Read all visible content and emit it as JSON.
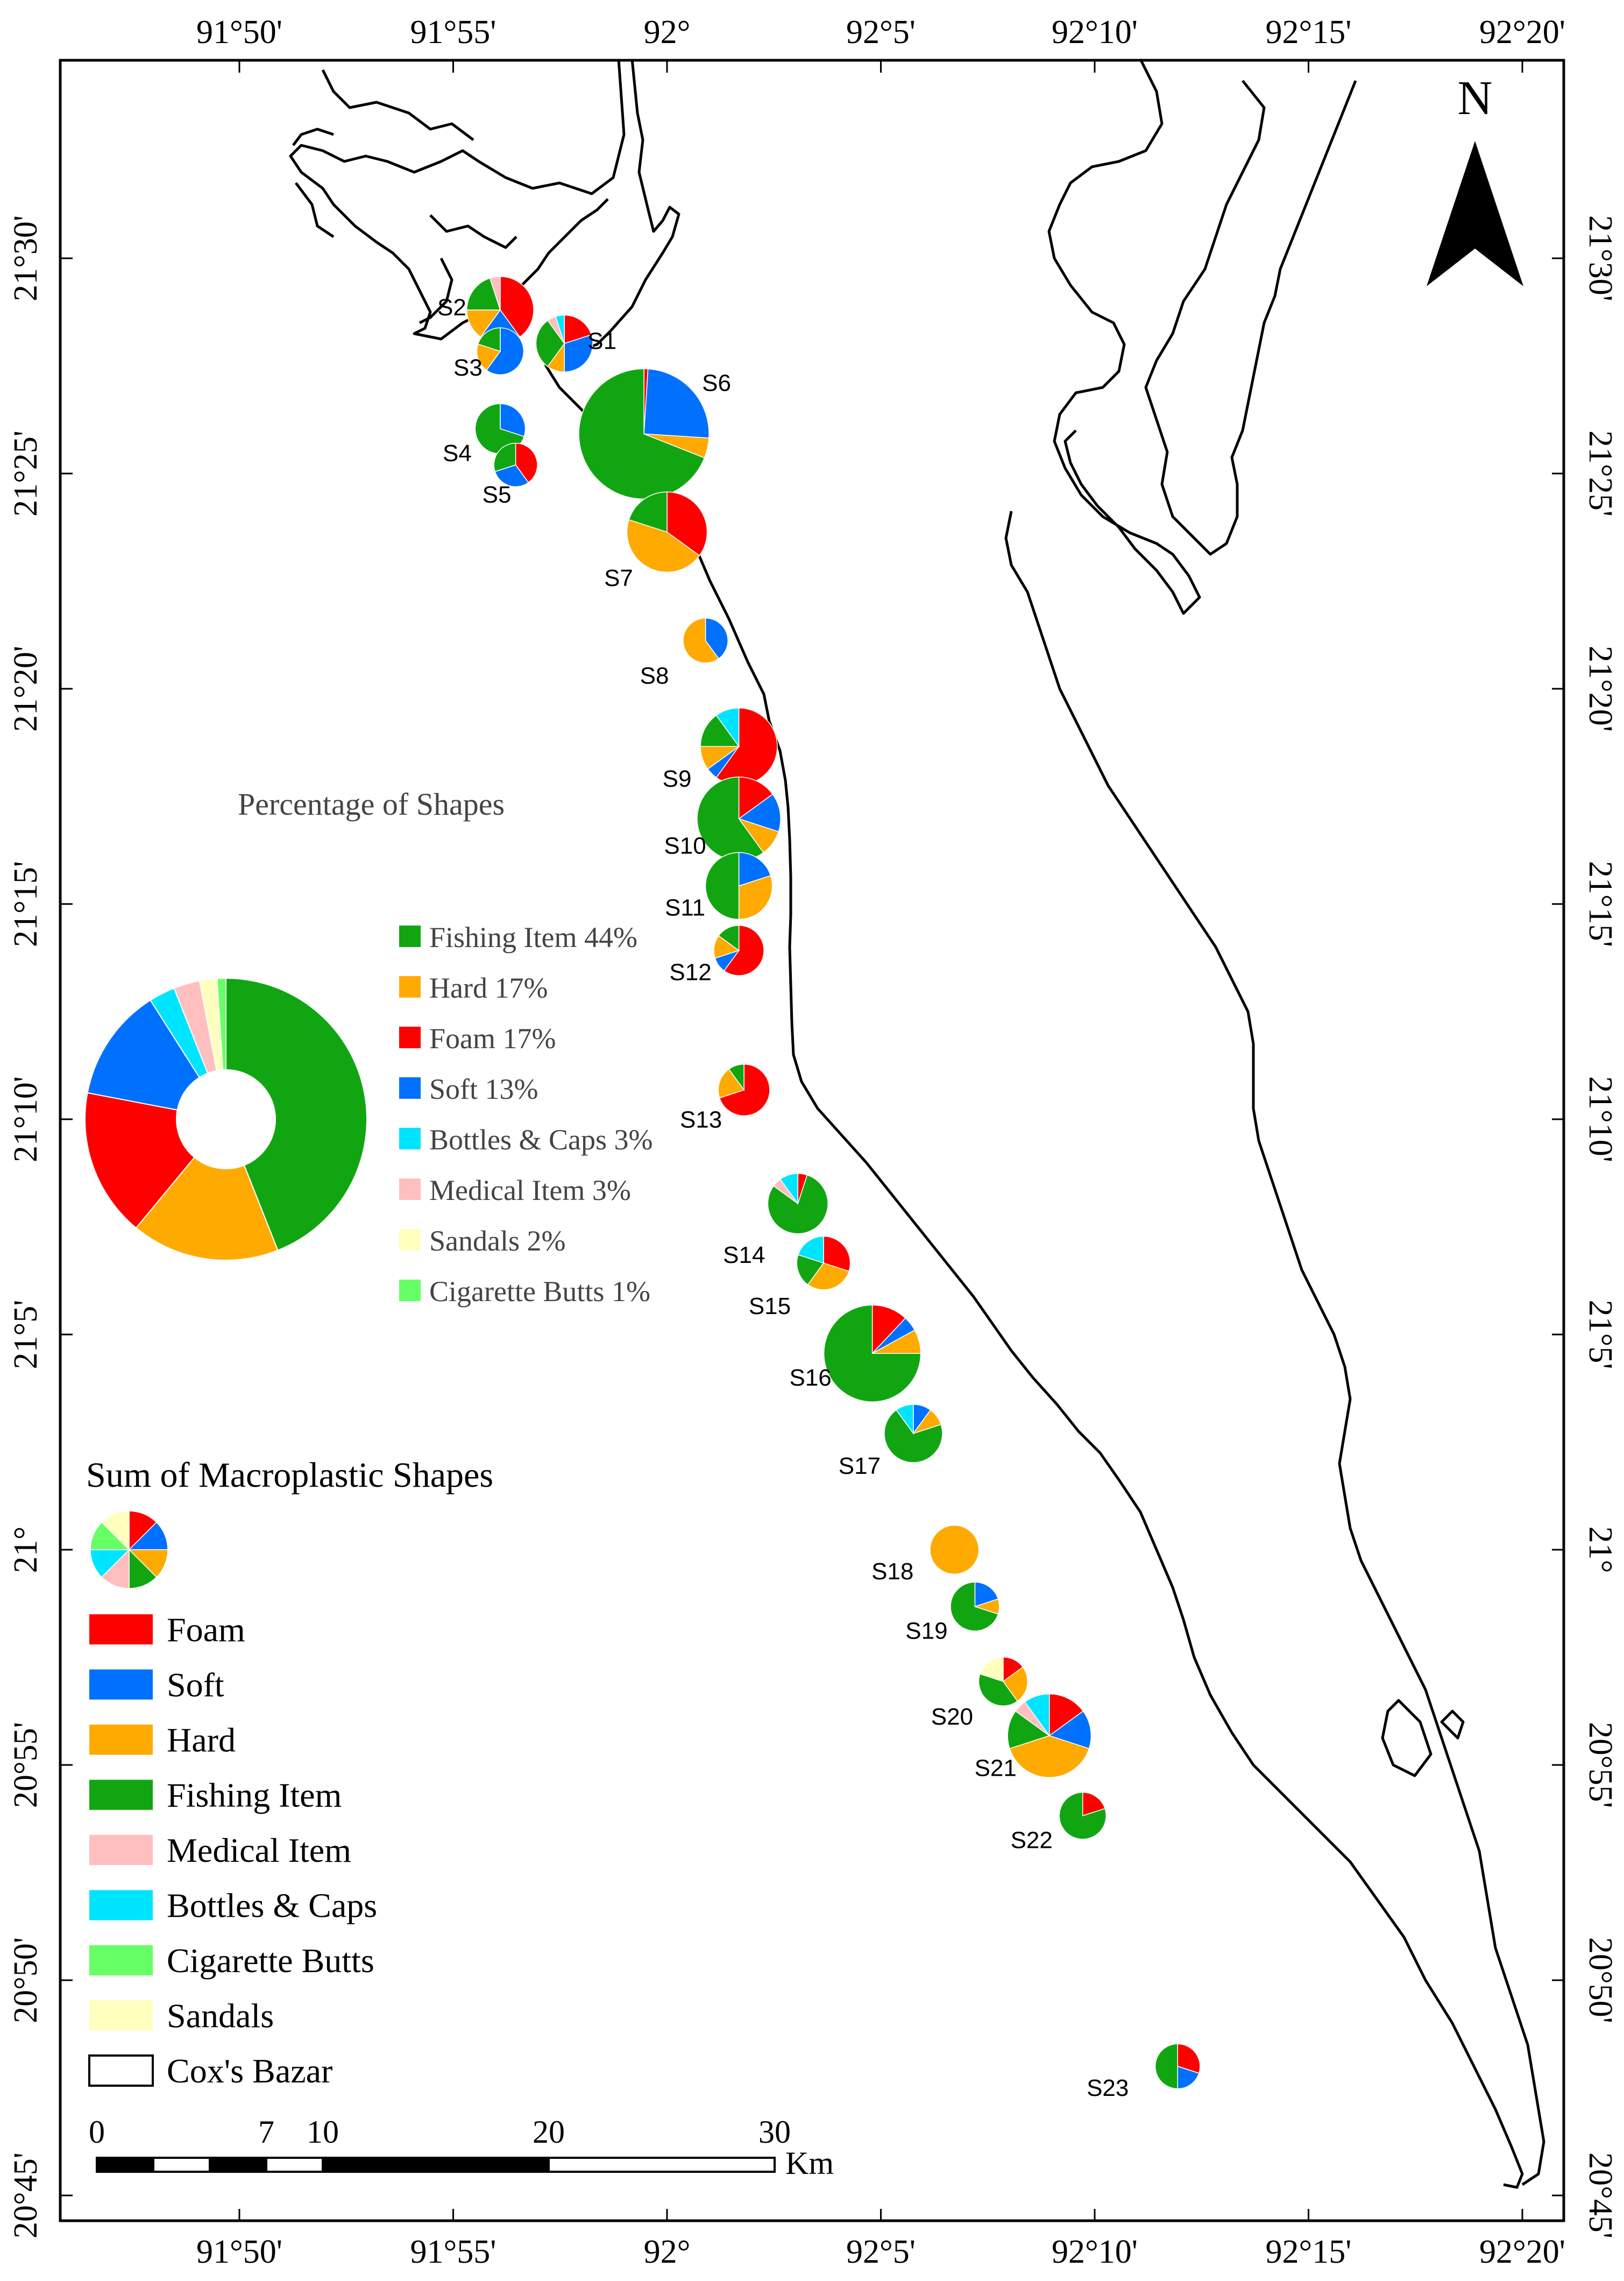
{
  "colors": {
    "foam": "#ff0000",
    "soft": "#0070ff",
    "hard": "#ffaa00",
    "fishing": "#11a611",
    "medical": "#ffbfbf",
    "bottles": "#00e5ff",
    "cigarette": "#66ff66",
    "sandals": "#ffffbe",
    "frame": "#000000",
    "coast": "#000000"
  },
  "axes": {
    "top": [
      "91°50'",
      "91°55'",
      "92°",
      "92°5'",
      "92°10'",
      "92°15'",
      "92°20'"
    ],
    "bottom": [
      "91°50'",
      "91°55'",
      "92°",
      "92°5'",
      "92°10'",
      "92°15'",
      "92°20'"
    ],
    "left": [
      "21°30'",
      "21°25'",
      "21°20'",
      "21°15'",
      "21°10'",
      "21°5'",
      "21°",
      "20°55'",
      "20°50'",
      "20°45'"
    ],
    "right": [
      "21°30'",
      "21°25'",
      "21°20'",
      "21°15'",
      "21°10'",
      "21°5'",
      "21°",
      "20°55'",
      "20°50'",
      "20°45'"
    ]
  },
  "north_label": "N",
  "percentage_chart": {
    "title": "Percentage of Shapes",
    "type": "donut",
    "categories": [
      "Fishing Item",
      "Hard",
      "Foam",
      "Soft",
      "Bottles & Caps",
      "Medical Item",
      "Sandals",
      "Cigarette Butts"
    ],
    "values": [
      44,
      17,
      17,
      13,
      3,
      3,
      2,
      1
    ],
    "labels": [
      "Fishing Item 44%",
      "Hard 17%",
      "Foam 17%",
      "Soft 13%",
      "Bottles & Caps 3%",
      "Medical Item 3%",
      "Sandals 2%",
      "Cigarette Butts 1%"
    ],
    "keys": [
      "fishing",
      "hard",
      "foam",
      "soft",
      "bottles",
      "medical",
      "sandals",
      "cigarette"
    ]
  },
  "legend": {
    "title": "Sum of Macroplastic Shapes",
    "items": [
      {
        "key": "foam",
        "label": "Foam"
      },
      {
        "key": "soft",
        "label": "Soft"
      },
      {
        "key": "hard",
        "label": "Hard"
      },
      {
        "key": "fishing",
        "label": "Fishing Item"
      },
      {
        "key": "medical",
        "label": "Medical Item"
      },
      {
        "key": "bottles",
        "label": "Bottles & Caps"
      },
      {
        "key": "cigarette",
        "label": "Cigarette Butts"
      },
      {
        "key": "sandals",
        "label": "Sandals"
      },
      {
        "key": "area",
        "label": "Cox's Bazar"
      }
    ]
  },
  "scale_bar": {
    "labels": [
      "0",
      "7",
      "10",
      "20",
      "30"
    ],
    "unit": "Km"
  },
  "chart_data": {
    "type": "pie",
    "series_keys": [
      "foam",
      "soft",
      "hard",
      "fishing",
      "medical",
      "bottles",
      "cigarette",
      "sandals"
    ],
    "sites": [
      {
        "name": "S1",
        "lon": 91.96,
        "lat": 21.467,
        "size": 0.4,
        "values": [
          20,
          30,
          10,
          30,
          5,
          5,
          0,
          0
        ]
      },
      {
        "name": "S2",
        "lon": 91.935,
        "lat": 21.48,
        "size": 0.55,
        "values": [
          40,
          20,
          15,
          20,
          5,
          0,
          0,
          0
        ]
      },
      {
        "name": "S3",
        "lon": 91.935,
        "lat": 21.464,
        "size": 0.25,
        "values": [
          0,
          60,
          20,
          20,
          0,
          0,
          0,
          0
        ]
      },
      {
        "name": "S4",
        "lon": 91.935,
        "lat": 21.434,
        "size": 0.3,
        "values": [
          0,
          30,
          0,
          70,
          0,
          0,
          0,
          0
        ]
      },
      {
        "name": "S5",
        "lon": 91.941,
        "lat": 21.42,
        "size": 0.2,
        "values": [
          40,
          30,
          0,
          30,
          0,
          0,
          0,
          0
        ]
      },
      {
        "name": "S6",
        "lon": 91.991,
        "lat": 21.432,
        "size": 1.5,
        "values": [
          1,
          25,
          5,
          69,
          0,
          0,
          0,
          0
        ]
      },
      {
        "name": "S7",
        "lon": 92.0,
        "lat": 21.394,
        "size": 0.75,
        "values": [
          35,
          0,
          45,
          20,
          0,
          0,
          0,
          0
        ]
      },
      {
        "name": "S8",
        "lon": 92.015,
        "lat": 21.352,
        "size": 0.22,
        "values": [
          0,
          40,
          60,
          0,
          0,
          0,
          0,
          0
        ]
      },
      {
        "name": "S9",
        "lon": 92.028,
        "lat": 21.311,
        "size": 0.7,
        "values": [
          60,
          5,
          10,
          15,
          0,
          10,
          0,
          0
        ]
      },
      {
        "name": "S10",
        "lon": 92.028,
        "lat": 21.283,
        "size": 0.8,
        "values": [
          15,
          15,
          10,
          60,
          0,
          0,
          0,
          0
        ]
      },
      {
        "name": "S11",
        "lon": 92.028,
        "lat": 21.257,
        "size": 0.55,
        "values": [
          0,
          20,
          30,
          50,
          0,
          0,
          0,
          0
        ]
      },
      {
        "name": "S12",
        "lon": 92.028,
        "lat": 21.232,
        "size": 0.3,
        "values": [
          60,
          10,
          15,
          15,
          0,
          0,
          0,
          0
        ]
      },
      {
        "name": "S13",
        "lon": 92.03,
        "lat": 21.178,
        "size": 0.32,
        "values": [
          70,
          0,
          20,
          10,
          0,
          0,
          0,
          0
        ]
      },
      {
        "name": "S14",
        "lon": 92.051,
        "lat": 21.134,
        "size": 0.45,
        "values": [
          5,
          0,
          0,
          80,
          5,
          10,
          0,
          0
        ]
      },
      {
        "name": "S15",
        "lon": 92.061,
        "lat": 21.111,
        "size": 0.35,
        "values": [
          30,
          0,
          30,
          20,
          0,
          20,
          0,
          0
        ]
      },
      {
        "name": "S16",
        "lon": 92.08,
        "lat": 21.076,
        "size": 1.0,
        "values": [
          12,
          5,
          8,
          75,
          0,
          0,
          0,
          0
        ]
      },
      {
        "name": "S17",
        "lon": 92.096,
        "lat": 21.045,
        "size": 0.42,
        "values": [
          0,
          10,
          10,
          70,
          0,
          10,
          0,
          0
        ]
      },
      {
        "name": "S18",
        "lon": 92.112,
        "lat": 21.0,
        "size": 0.28,
        "values": [
          0,
          0,
          100,
          0,
          0,
          0,
          0,
          0
        ]
      },
      {
        "name": "S19",
        "lon": 92.12,
        "lat": 20.978,
        "size": 0.28,
        "values": [
          0,
          20,
          10,
          70,
          0,
          0,
          0,
          0
        ]
      },
      {
        "name": "S20",
        "lon": 92.131,
        "lat": 20.949,
        "size": 0.28,
        "values": [
          15,
          0,
          25,
          40,
          0,
          0,
          0,
          20
        ]
      },
      {
        "name": "S21",
        "lon": 92.149,
        "lat": 20.928,
        "size": 0.8,
        "values": [
          15,
          15,
          40,
          15,
          5,
          10,
          0,
          0
        ]
      },
      {
        "name": "S22",
        "lon": 92.162,
        "lat": 20.897,
        "size": 0.25,
        "values": [
          20,
          0,
          0,
          80,
          0,
          0,
          0,
          0
        ]
      },
      {
        "name": "S23",
        "lon": 92.199,
        "lat": 20.8,
        "size": 0.22,
        "values": [
          30,
          20,
          0,
          50,
          0,
          0,
          0,
          0
        ]
      }
    ]
  }
}
